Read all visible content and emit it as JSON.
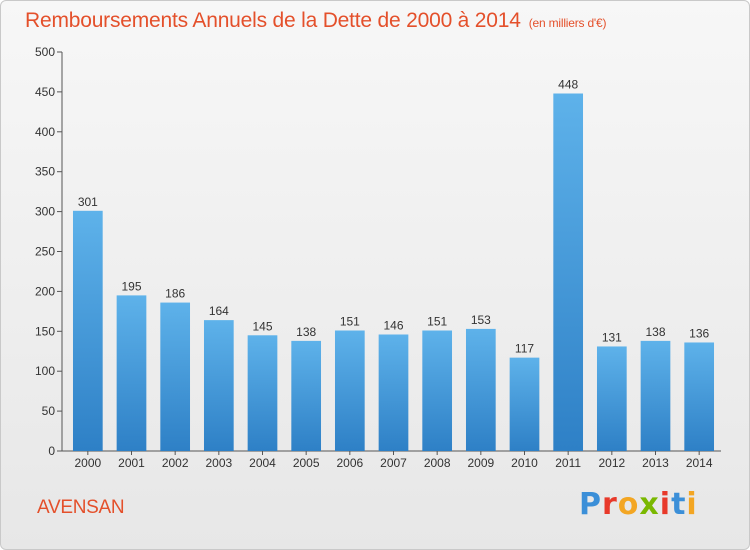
{
  "title": "Remboursements Annuels de la Dette de 2000 à 2014",
  "subtitle": "(en milliers d'€)",
  "town": "AVENSAN",
  "logo": {
    "letters": [
      "P",
      "r",
      "o",
      "x",
      "i",
      "t",
      "i"
    ],
    "colors": [
      "#3b8fd8",
      "#e8392a",
      "#f3a623",
      "#7ab800",
      "#e8392a",
      "#3b8fd8",
      "#f3a623"
    ]
  },
  "colors": {
    "bar_top": "#5eb2ea",
    "bar_bottom": "#2e80c6",
    "accent": "#e4502b"
  },
  "chart_data": {
    "type": "bar",
    "categories": [
      "2000",
      "2001",
      "2002",
      "2003",
      "2004",
      "2005",
      "2006",
      "2007",
      "2008",
      "2009",
      "2010",
      "2011",
      "2012",
      "2013",
      "2014"
    ],
    "values": [
      301,
      195,
      186,
      164,
      145,
      138,
      151,
      146,
      151,
      153,
      117,
      448,
      131,
      138,
      136
    ],
    "data_labels": [
      "301",
      "195",
      "186",
      "164",
      "145",
      "138",
      "151",
      "146",
      "151",
      "153",
      "117",
      "448",
      "131",
      "138",
      "136"
    ],
    "ylim": [
      0,
      500
    ],
    "y_ticks": [
      "0",
      "50",
      "100",
      "150",
      "200",
      "250",
      "300",
      "350",
      "400",
      "450",
      "500"
    ],
    "grid": false,
    "legend": "none"
  }
}
